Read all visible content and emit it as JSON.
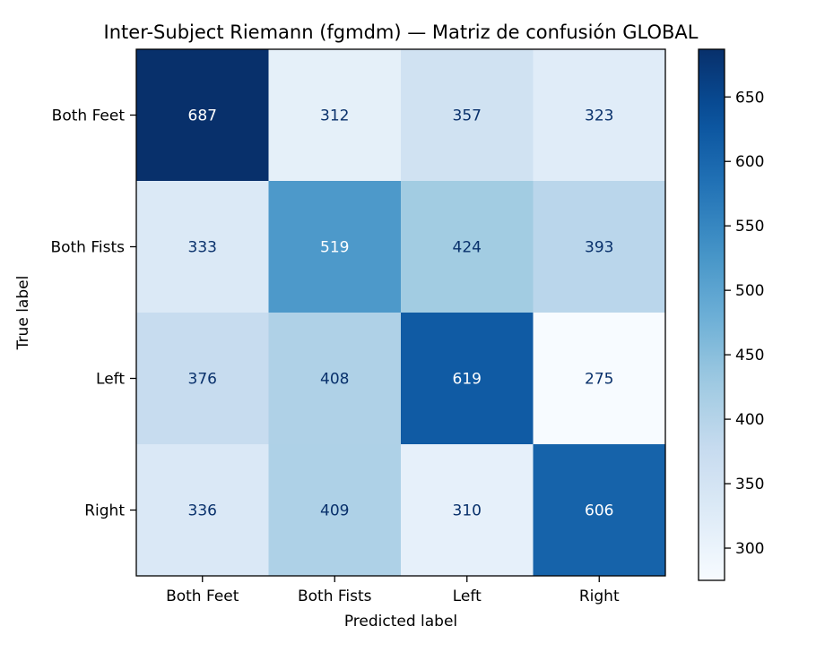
{
  "chart_data": {
    "type": "heatmap",
    "title": "Inter-Subject Riemann (fgmdm) — Matriz de confusión GLOBAL",
    "xlabel": "Predicted label",
    "ylabel": "True label",
    "x_categories": [
      "Both Feet",
      "Both Fists",
      "Left",
      "Right"
    ],
    "y_categories": [
      "Both Feet",
      "Both Fists",
      "Left",
      "Right"
    ],
    "values": [
      [
        687,
        312,
        357,
        323
      ],
      [
        333,
        519,
        424,
        393
      ],
      [
        376,
        408,
        619,
        275
      ],
      [
        336,
        409,
        310,
        606
      ]
    ],
    "colormap": "Blues",
    "colorbar": {
      "range": [
        275,
        687
      ],
      "ticks": [
        300,
        350,
        400,
        450,
        500,
        550,
        600,
        650
      ]
    },
    "grid": false
  }
}
